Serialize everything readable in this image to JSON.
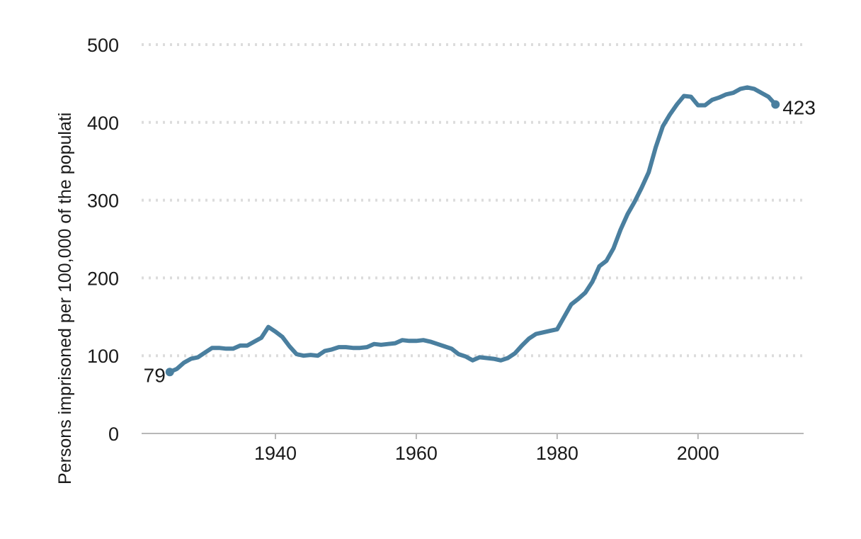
{
  "chart_data": {
    "type": "line",
    "ylabel": "Persons imprisoned per 100,000 of the populati",
    "xlabel": "",
    "xlim": [
      1921,
      2015
    ],
    "ylim": [
      0,
      500
    ],
    "x_ticks": [
      "1940",
      "1960",
      "1980",
      "2000"
    ],
    "y_ticks": [
      "0",
      "100",
      "200",
      "300",
      "400",
      "500"
    ],
    "grid": "horizontal dotted",
    "line_color": "#4a7f9f",
    "start_label": "79",
    "end_label": "423",
    "series": [
      {
        "x": [
          1925,
          1926,
          1927,
          1928,
          1929,
          1930,
          1931,
          1932,
          1933,
          1934,
          1935,
          1936,
          1937,
          1938,
          1939,
          1940,
          1941,
          1942,
          1943,
          1944,
          1945,
          1946,
          1947,
          1948,
          1949,
          1950,
          1951,
          1952,
          1953,
          1954,
          1955,
          1956,
          1957,
          1958,
          1959,
          1960,
          1961,
          1962,
          1963,
          1964,
          1965,
          1966,
          1967,
          1968,
          1969,
          1970,
          1971,
          1972,
          1973,
          1974,
          1975,
          1976,
          1977,
          1978,
          1979,
          1980,
          1981,
          1982,
          1983,
          1984,
          1985,
          1986,
          1987,
          1988,
          1989,
          1990,
          1991,
          1992,
          1993,
          1994,
          1995,
          1996,
          1997,
          1998,
          1999,
          2000,
          2001,
          2002,
          2003,
          2004,
          2005,
          2006,
          2007,
          2008,
          2009,
          2010,
          2011
        ],
        "y": [
          79,
          83,
          91,
          96,
          98,
          104,
          110,
          110,
          109,
          109,
          113,
          113,
          118,
          123,
          137,
          131,
          124,
          112,
          102,
          100,
          101,
          100,
          106,
          108,
          111,
          111,
          110,
          110,
          111,
          115,
          114,
          115,
          116,
          120,
          119,
          119,
          120,
          118,
          115,
          112,
          109,
          102,
          99,
          94,
          98,
          97,
          96,
          94,
          97,
          103,
          113,
          122,
          128,
          130,
          132,
          134,
          150,
          166,
          173,
          181,
          195,
          215,
          222,
          238,
          262,
          282,
          298,
          316,
          336,
          368,
          395,
          410,
          423,
          434,
          433,
          422,
          422,
          429,
          432,
          436,
          438,
          443,
          445,
          443,
          438,
          433,
          423
        ]
      }
    ]
  }
}
